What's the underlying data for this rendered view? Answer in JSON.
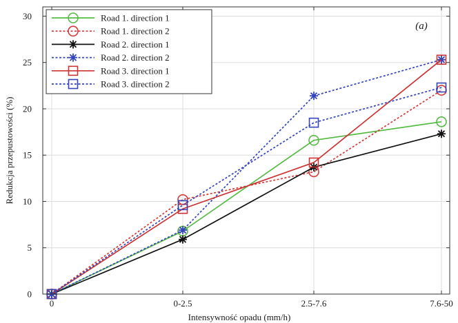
{
  "chart_data": {
    "type": "line",
    "panel_label": "(a)",
    "xlabel": "Intensywność opadu (mm/h)",
    "ylabel": "Redukcja przepustowości (%)",
    "categories": [
      "0",
      "0-2.5",
      "2.5-7.6",
      "7.6-50"
    ],
    "ylim": [
      0,
      31
    ],
    "yticks": [
      0,
      5,
      10,
      15,
      20,
      25,
      30
    ],
    "grid": true,
    "legend_position": "top-left",
    "series": [
      {
        "name": "Road 1. direction 1",
        "values": [
          0,
          6.8,
          16.6,
          18.6
        ],
        "color": "#55bb44",
        "dash": "solid",
        "marker": "circle"
      },
      {
        "name": "Road 1. direction 2",
        "values": [
          0,
          10.2,
          13.2,
          22.0
        ],
        "color": "#d43b3b",
        "dash": "dotted",
        "marker": "circle"
      },
      {
        "name": "Road 2. direction 1",
        "values": [
          0,
          5.9,
          13.7,
          17.3
        ],
        "color": "#111111",
        "dash": "solid",
        "marker": "star"
      },
      {
        "name": "Road 2. direction 2",
        "values": [
          0,
          6.9,
          21.4,
          25.3
        ],
        "color": "#3344bb",
        "dash": "dotted",
        "marker": "star"
      },
      {
        "name": "Road 3. direction 1",
        "values": [
          0,
          9.2,
          14.2,
          25.3
        ],
        "color": "#cc3333",
        "dash": "solid",
        "marker": "square"
      },
      {
        "name": "Road 3. direction 2",
        "values": [
          0,
          9.6,
          18.5,
          22.3
        ],
        "color": "#3344bb",
        "dash": "dotted",
        "marker": "square"
      }
    ]
  }
}
